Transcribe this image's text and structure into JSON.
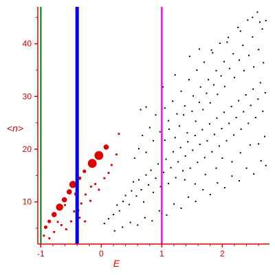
{
  "chart_data": {
    "type": "scatter",
    "title": "",
    "xlabel": "E",
    "ylabel": "<n>",
    "xlim": [
      -1.05,
      2.78
    ],
    "ylim": [
      2,
      47
    ],
    "xticks": [
      -1,
      0,
      1,
      2
    ],
    "yticks": [
      10,
      20,
      30,
      40
    ],
    "grid": false,
    "colors": {
      "axes": "#e00000",
      "points_black": "#000000",
      "points_red": "#e00000"
    },
    "vertical_lines": [
      {
        "x": -1.0,
        "color": "#007700",
        "width": "thin"
      },
      {
        "x": -0.4,
        "color": "#0000ee",
        "width": "thick"
      },
      {
        "x": 1.0,
        "color": "#ee00ee",
        "width": "medium"
      }
    ],
    "series": [
      {
        "color": "#e00000",
        "marker": "filled-circle",
        "points": [
          [
            -0.95,
            3.6,
            1
          ],
          [
            -0.92,
            5.2,
            2
          ],
          [
            -0.86,
            6.3,
            2
          ],
          [
            -0.78,
            7.6,
            3
          ],
          [
            -0.69,
            9.0,
            4
          ],
          [
            -0.61,
            10.4,
            3
          ],
          [
            -0.53,
            11.9,
            3
          ],
          [
            -0.47,
            13.3,
            4
          ],
          [
            -0.42,
            11.5,
            2
          ],
          [
            -0.36,
            14.5,
            2
          ],
          [
            -0.28,
            15.8,
            2
          ],
          [
            -0.15,
            17.3,
            5
          ],
          [
            -0.04,
            18.8,
            5
          ],
          [
            0.08,
            20.4,
            3
          ],
          [
            -0.72,
            6.2,
            1
          ],
          [
            -0.66,
            5.6,
            1
          ],
          [
            -0.58,
            4.8,
            1
          ],
          [
            -0.86,
            3.1,
            1
          ],
          [
            -0.78,
            4.3,
            1
          ],
          [
            -0.5,
            6.3,
            1
          ],
          [
            -0.38,
            8.4,
            1
          ],
          [
            -0.36,
            7.0,
            1
          ],
          [
            -0.33,
            9.7,
            1
          ],
          [
            -0.26,
            11.4,
            1
          ],
          [
            -0.17,
            12.9,
            1
          ],
          [
            -0.1,
            13.4,
            1
          ],
          [
            -0.04,
            12.3,
            1
          ],
          [
            0.05,
            14.5,
            1
          ],
          [
            0.12,
            15.5,
            1
          ],
          [
            0.17,
            17.0,
            1
          ],
          [
            0.25,
            19.0,
            1
          ],
          [
            0.29,
            22.9,
            1
          ],
          [
            -0.6,
            9.4,
            1
          ],
          [
            -0.45,
            8.2,
            1
          ],
          [
            -0.27,
            6.3,
            1
          ],
          [
            -0.18,
            10.2,
            1
          ]
        ]
      },
      {
        "color": "#000000",
        "marker": "dot",
        "points": [
          [
            0.05,
            5.9
          ],
          [
            0.12,
            6.8
          ],
          [
            0.2,
            7.6
          ],
          [
            0.26,
            9.4
          ],
          [
            0.3,
            8.3
          ],
          [
            0.36,
            10.1
          ],
          [
            0.4,
            11.2
          ],
          [
            0.46,
            9.5
          ],
          [
            0.5,
            12.1
          ],
          [
            0.53,
            13.8
          ],
          [
            0.58,
            11.1
          ],
          [
            0.62,
            14.2
          ],
          [
            0.66,
            12.3
          ],
          [
            0.7,
            10.0
          ],
          [
            0.74,
            15.1
          ],
          [
            0.78,
            13.2
          ],
          [
            0.82,
            16.0
          ],
          [
            0.86,
            11.8
          ],
          [
            0.9,
            14.5
          ],
          [
            0.94,
            17.2
          ],
          [
            0.98,
            12.9
          ],
          [
            1.03,
            15.6
          ],
          [
            1.07,
            18.1
          ],
          [
            1.11,
            13.5
          ],
          [
            1.15,
            16.5
          ],
          [
            1.19,
            19.5
          ],
          [
            1.23,
            14.6
          ],
          [
            1.27,
            17.6
          ],
          [
            1.31,
            20.3
          ],
          [
            1.35,
            15.9
          ],
          [
            1.39,
            18.7
          ],
          [
            1.43,
            21.4
          ],
          [
            1.47,
            16.4
          ],
          [
            1.51,
            19.8
          ],
          [
            1.55,
            22.6
          ],
          [
            1.59,
            17.5
          ],
          [
            1.63,
            20.9
          ],
          [
            1.67,
            23.7
          ],
          [
            1.71,
            18.4
          ],
          [
            1.75,
            21.6
          ],
          [
            1.79,
            24.8
          ],
          [
            1.83,
            19.5
          ],
          [
            1.87,
            22.8
          ],
          [
            1.91,
            25.9
          ],
          [
            1.95,
            20.6
          ],
          [
            1.99,
            23.9
          ],
          [
            2.03,
            27.0
          ],
          [
            2.07,
            21.6
          ],
          [
            2.11,
            24.9
          ],
          [
            2.15,
            28.1
          ],
          [
            2.19,
            22.7
          ],
          [
            2.23,
            26.0
          ],
          [
            2.27,
            29.2
          ],
          [
            2.31,
            23.8
          ],
          [
            2.35,
            27.1
          ],
          [
            2.39,
            30.3
          ],
          [
            2.43,
            24.9
          ],
          [
            2.47,
            28.3
          ],
          [
            2.51,
            31.4
          ],
          [
            2.55,
            26.0
          ],
          [
            2.59,
            29.5
          ],
          [
            2.63,
            32.6
          ],
          [
            2.67,
            27.2
          ],
          [
            2.71,
            30.7
          ],
          [
            0.55,
            18.3
          ],
          [
            0.62,
            20.1
          ],
          [
            0.68,
            22.6
          ],
          [
            0.74,
            19.4
          ],
          [
            0.8,
            24.1
          ],
          [
            0.86,
            21.6
          ],
          [
            0.9,
            26.5
          ],
          [
            0.97,
            23.3
          ],
          [
            1.05,
            27.8
          ],
          [
            1.11,
            25.4
          ],
          [
            1.18,
            29.1
          ],
          [
            1.25,
            26.7
          ],
          [
            1.32,
            31.0
          ],
          [
            1.38,
            28.2
          ],
          [
            1.45,
            33.2
          ],
          [
            1.52,
            30.1
          ],
          [
            1.58,
            35.0
          ],
          [
            1.64,
            31.8
          ],
          [
            1.7,
            36.5
          ],
          [
            1.77,
            33.2
          ],
          [
            1.84,
            38.3
          ],
          [
            1.9,
            34.9
          ],
          [
            1.96,
            40.1
          ],
          [
            2.03,
            36.6
          ],
          [
            2.1,
            41.2
          ],
          [
            2.18,
            38.1
          ],
          [
            2.26,
            43.1
          ],
          [
            2.34,
            39.7
          ],
          [
            2.42,
            44.5
          ],
          [
            2.5,
            41.3
          ],
          [
            2.58,
            46.0
          ],
          [
            2.66,
            42.8
          ],
          [
            2.72,
            44.4
          ],
          [
            0.22,
            4.5
          ],
          [
            0.35,
            5.2
          ],
          [
            0.48,
            6.1
          ],
          [
            0.6,
            5.6
          ],
          [
            0.72,
            7.0
          ],
          [
            0.84,
            6.4
          ],
          [
            0.96,
            8.3
          ],
          [
            1.08,
            7.5
          ],
          [
            1.2,
            9.6
          ],
          [
            1.32,
            8.8
          ],
          [
            1.44,
            10.9
          ],
          [
            1.56,
            10.1
          ],
          [
            1.68,
            12.3
          ],
          [
            1.8,
            11.4
          ],
          [
            1.92,
            13.6
          ],
          [
            2.04,
            12.7
          ],
          [
            2.16,
            14.9
          ],
          [
            2.28,
            14.0
          ],
          [
            2.4,
            16.4
          ],
          [
            2.52,
            15.3
          ],
          [
            2.64,
            17.8
          ],
          [
            2.72,
            16.9
          ],
          [
            1.05,
            21.7
          ],
          [
            1.12,
            23.8
          ],
          [
            1.22,
            22.2
          ],
          [
            1.29,
            24.4
          ],
          [
            1.36,
            26.5
          ],
          [
            1.42,
            23.1
          ],
          [
            1.5,
            27.2
          ],
          [
            1.56,
            25.3
          ],
          [
            1.62,
            28.9
          ],
          [
            1.68,
            27.5
          ],
          [
            1.74,
            30.6
          ],
          [
            1.8,
            28.8
          ],
          [
            1.86,
            32.2
          ],
          [
            1.92,
            30.4
          ],
          [
            1.98,
            33.9
          ],
          [
            2.04,
            31.9
          ],
          [
            2.12,
            35.3
          ],
          [
            2.2,
            33.6
          ],
          [
            2.28,
            36.9
          ],
          [
            2.36,
            34.9
          ],
          [
            2.44,
            37.8
          ],
          [
            2.52,
            35.6
          ],
          [
            2.6,
            38.9
          ],
          [
            2.68,
            36.4
          ],
          [
            0.65,
            27.5
          ],
          [
            0.74,
            28.0
          ],
          [
            1.02,
            31.8
          ],
          [
            1.22,
            34.1
          ],
          [
            1.46,
            37.6
          ],
          [
            1.62,
            39.0
          ],
          [
            1.82,
            38.8
          ],
          [
            2.08,
            40.3
          ],
          [
            2.3,
            42.4
          ],
          [
            2.5,
            45.0
          ],
          [
            2.62,
            44.1
          ],
          [
            1.38,
            14.2
          ],
          [
            1.55,
            13.4
          ],
          [
            1.72,
            15.2
          ],
          [
            1.9,
            16.4
          ],
          [
            2.0,
            18.3
          ],
          [
            2.16,
            17.6
          ],
          [
            2.3,
            19.3
          ],
          [
            2.46,
            20.8
          ],
          [
            2.6,
            21.0
          ],
          [
            2.7,
            22.4
          ]
        ]
      }
    ]
  }
}
